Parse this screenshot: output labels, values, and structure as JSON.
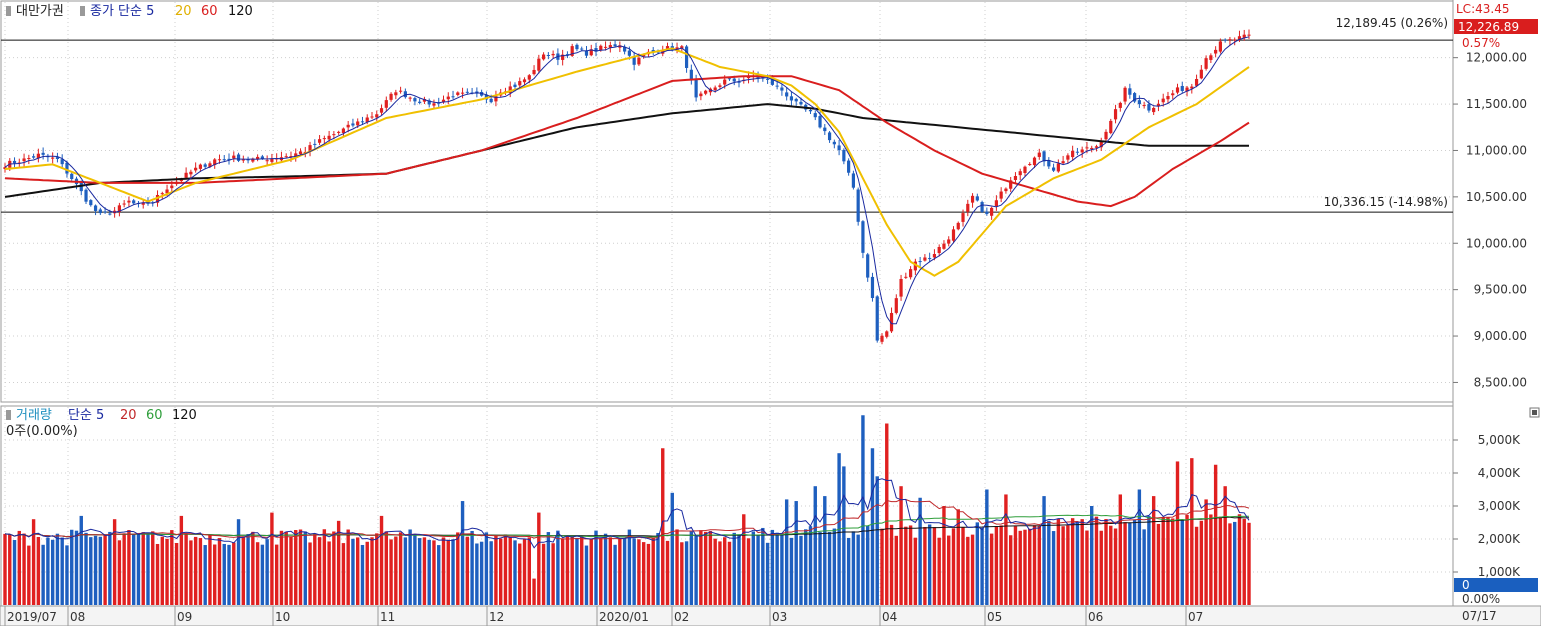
{
  "price_legend": {
    "name": "대만가권",
    "ma_label": "종가 단순 5",
    "ma20": "20",
    "ma60": "60",
    "ma120": "120"
  },
  "volume_legend": {
    "name": "거래량",
    "ma_label": "단순 5",
    "ma20": "20",
    "ma60": "60",
    "ma120": "120",
    "value": "0주(0.00%)"
  },
  "annotations": {
    "upper_line_label": "12,189.45 (0.26%)",
    "lower_line_label": "10,336.15 (-14.98%)",
    "lc_label": "LC:43.45",
    "current_price": "12,226.89",
    "current_change": "0.57%",
    "volume_zero": "0",
    "volume_zero_pct": "0.00%",
    "last_date": "07/17"
  },
  "colors": {
    "up": "#e02020",
    "down": "#1e5fbf",
    "ma5": "#1a2aa0",
    "ma20": "#f0c000",
    "ma60": "#d91e1e",
    "ma120": "#111111",
    "vol_ma20": "#c0282a",
    "vol_ma60": "#2e9e3a"
  },
  "chart_data": [
    {
      "type": "candlestick",
      "title": "대만가권",
      "x_labels": [
        "2019/07",
        "08",
        "09",
        "10",
        "11",
        "12",
        "2020/01",
        "02",
        "03",
        "04",
        "05",
        "06",
        "07"
      ],
      "ylim": [
        8300,
        12600
      ],
      "y_ticks": [
        "12,000.00",
        "11,500.00",
        "11,000.00",
        "10,500.00",
        "10,000.00",
        "9,500.00",
        "9,000.00",
        "8,500.00"
      ],
      "y_tick_values": [
        12000,
        11500,
        11000,
        10500,
        10000,
        9500,
        9000,
        8500
      ],
      "horizontal_lines": [
        12189.45,
        10336.15
      ],
      "anchors": [
        [
          0,
          10850
        ],
        [
          4,
          10900
        ],
        [
          7,
          10950
        ],
        [
          11,
          10900
        ],
        [
          14,
          10700
        ],
        [
          16,
          10550
        ],
        [
          18,
          10400
        ],
        [
          20,
          10300
        ],
        [
          23,
          10350
        ],
        [
          26,
          10450
        ],
        [
          28,
          10400
        ],
        [
          31,
          10450
        ],
        [
          34,
          10600
        ],
        [
          37,
          10700
        ],
        [
          40,
          10800
        ],
        [
          44,
          10900
        ],
        [
          48,
          10920
        ],
        [
          52,
          10900
        ],
        [
          56,
          10920
        ],
        [
          60,
          10950
        ],
        [
          63,
          11000
        ],
        [
          66,
          11100
        ],
        [
          70,
          11200
        ],
        [
          74,
          11300
        ],
        [
          78,
          11400
        ],
        [
          82,
          11650
        ],
        [
          86,
          11550
        ],
        [
          90,
          11500
        ],
        [
          94,
          11600
        ],
        [
          98,
          11600
        ],
        [
          102,
          11550
        ],
        [
          104,
          11650
        ],
        [
          107,
          11700
        ],
        [
          110,
          11800
        ],
        [
          113,
          12050
        ],
        [
          116,
          12000
        ],
        [
          119,
          12100
        ],
        [
          122,
          12050
        ],
        [
          125,
          12100
        ],
        [
          129,
          12150
        ],
        [
          132,
          11950
        ],
        [
          135,
          12050
        ],
        [
          138,
          12100
        ],
        [
          142,
          12100
        ],
        [
          145,
          11550
        ],
        [
          148,
          11650
        ],
        [
          151,
          11750
        ],
        [
          154,
          11750
        ],
        [
          157,
          11800
        ],
        [
          160,
          11750
        ],
        [
          163,
          11650
        ],
        [
          166,
          11500
        ],
        [
          169,
          11400
        ],
        [
          172,
          11200
        ],
        [
          175,
          11000
        ],
        [
          178,
          10600
        ],
        [
          180,
          9900
        ],
        [
          182,
          9400
        ],
        [
          183,
          8950
        ],
        [
          185,
          9050
        ],
        [
          188,
          9600
        ],
        [
          191,
          9800
        ],
        [
          194,
          9850
        ],
        [
          197,
          10000
        ],
        [
          200,
          10200
        ],
        [
          203,
          10500
        ],
        [
          206,
          10300
        ],
        [
          208,
          10450
        ],
        [
          211,
          10700
        ],
        [
          214,
          10850
        ],
        [
          217,
          10950
        ],
        [
          220,
          10800
        ],
        [
          223,
          10950
        ],
        [
          226,
          11000
        ],
        [
          229,
          11050
        ],
        [
          232,
          11300
        ],
        [
          235,
          11650
        ],
        [
          237,
          11550
        ],
        [
          240,
          11450
        ],
        [
          243,
          11550
        ],
        [
          246,
          11650
        ],
        [
          249,
          11700
        ],
        [
          252,
          12000
        ],
        [
          255,
          12150
        ],
        [
          258,
          12200
        ],
        [
          261,
          12230
        ]
      ],
      "ma20_anchors": [
        [
          0,
          10800
        ],
        [
          10,
          10850
        ],
        [
          20,
          10650
        ],
        [
          30,
          10450
        ],
        [
          40,
          10650
        ],
        [
          60,
          10900
        ],
        [
          80,
          11350
        ],
        [
          100,
          11550
        ],
        [
          120,
          11850
        ],
        [
          135,
          12050
        ],
        [
          140,
          12100
        ],
        [
          150,
          11900
        ],
        [
          160,
          11800
        ],
        [
          165,
          11700
        ],
        [
          170,
          11500
        ],
        [
          175,
          11200
        ],
        [
          180,
          10700
        ],
        [
          185,
          10200
        ],
        [
          190,
          9800
        ],
        [
          195,
          9650
        ],
        [
          200,
          9800
        ],
        [
          205,
          10100
        ],
        [
          210,
          10400
        ],
        [
          220,
          10700
        ],
        [
          230,
          10900
        ],
        [
          240,
          11250
        ],
        [
          250,
          11500
        ],
        [
          261,
          11900
        ]
      ],
      "ma60_anchors": [
        [
          0,
          10700
        ],
        [
          20,
          10650
        ],
        [
          40,
          10650
        ],
        [
          60,
          10700
        ],
        [
          80,
          10750
        ],
        [
          100,
          11000
        ],
        [
          120,
          11350
        ],
        [
          140,
          11750
        ],
        [
          155,
          11800
        ],
        [
          165,
          11800
        ],
        [
          175,
          11650
        ],
        [
          185,
          11300
        ],
        [
          195,
          11000
        ],
        [
          205,
          10750
        ],
        [
          215,
          10600
        ],
        [
          225,
          10450
        ],
        [
          232,
          10400
        ],
        [
          237,
          10500
        ],
        [
          245,
          10800
        ],
        [
          255,
          11100
        ],
        [
          261,
          11300
        ]
      ],
      "ma120_anchors": [
        [
          0,
          10500
        ],
        [
          20,
          10650
        ],
        [
          40,
          10700
        ],
        [
          60,
          10720
        ],
        [
          80,
          10750
        ],
        [
          100,
          11000
        ],
        [
          120,
          11250
        ],
        [
          140,
          11400
        ],
        [
          160,
          11500
        ],
        [
          170,
          11450
        ],
        [
          180,
          11350
        ],
        [
          200,
          11250
        ],
        [
          220,
          11150
        ],
        [
          240,
          11050
        ],
        [
          261,
          11050
        ]
      ]
    },
    {
      "type": "bar",
      "title": "거래량",
      "ylim": [
        0,
        6000
      ],
      "y_ticks": [
        "5,000K",
        "4,000K",
        "3,000K",
        "2,000K",
        "1,000K"
      ],
      "y_tick_values": [
        5000,
        4000,
        3000,
        2000,
        1000
      ],
      "base_level": 2050,
      "spikes": [
        [
          6,
          2600
        ],
        [
          16,
          2700
        ],
        [
          23,
          2600
        ],
        [
          37,
          2700
        ],
        [
          49,
          2600
        ],
        [
          56,
          2800
        ],
        [
          70,
          2550
        ],
        [
          79,
          2700
        ],
        [
          96,
          3150
        ],
        [
          112,
          2800
        ],
        [
          138,
          4750
        ],
        [
          140,
          3400
        ],
        [
          155,
          2750
        ],
        [
          164,
          3200
        ],
        [
          166,
          3150
        ],
        [
          170,
          3600
        ],
        [
          172,
          3300
        ],
        [
          175,
          4600
        ],
        [
          176,
          4200
        ],
        [
          180,
          5750
        ],
        [
          182,
          4750
        ],
        [
          183,
          3900
        ],
        [
          185,
          5500
        ],
        [
          188,
          3600
        ],
        [
          192,
          3250
        ],
        [
          197,
          3000
        ],
        [
          200,
          2900
        ],
        [
          206,
          3500
        ],
        [
          210,
          3350
        ],
        [
          218,
          3300
        ],
        [
          228,
          3000
        ],
        [
          234,
          3350
        ],
        [
          238,
          3500
        ],
        [
          241,
          3300
        ],
        [
          246,
          4350
        ],
        [
          249,
          4450
        ],
        [
          252,
          3200
        ],
        [
          254,
          4250
        ],
        [
          256,
          3600
        ]
      ],
      "ma_levels": {
        "ma5_base": 2100,
        "ma20_base": 2050,
        "ma60_base": 2000,
        "ma120_base": 1980
      }
    }
  ]
}
